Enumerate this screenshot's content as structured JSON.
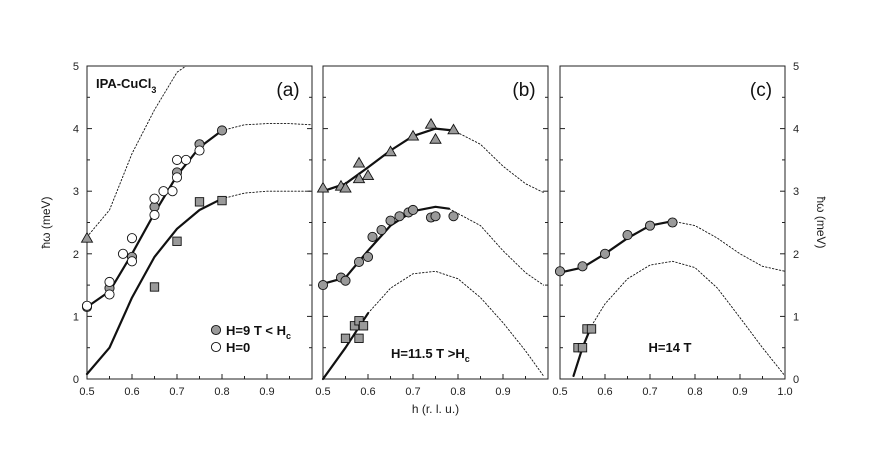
{
  "chart_data": [
    {
      "type": "scatter",
      "panel": "(a)",
      "title": "IPA-CuCl",
      "title_sub": "3",
      "xlim": [
        0.5,
        1.0
      ],
      "ylim": [
        0,
        5
      ],
      "xticks": [
        0.5,
        0.6,
        0.7,
        0.8,
        0.9
      ],
      "xtick_labels": [
        "0.5",
        "0.6",
        "0.7",
        "0.8",
        "0.9"
      ],
      "yticks": [
        0,
        1,
        2,
        3,
        4,
        5
      ],
      "ylabel": "ħω (meV)",
      "legend": [
        {
          "marker": "filled-circle",
          "label": "H=9 T < H",
          "sub": "c"
        },
        {
          "marker": "open-circle",
          "label": "H=0"
        }
      ],
      "series": [
        {
          "name": "H=9T filled circles",
          "marker": "filled-circle",
          "points": [
            [
              0.5,
              1.15
            ],
            [
              0.55,
              1.45
            ],
            [
              0.6,
              1.95
            ],
            [
              0.65,
              2.75
            ],
            [
              0.7,
              3.3
            ],
            [
              0.75,
              3.75
            ],
            [
              0.8,
              3.97
            ]
          ]
        },
        {
          "name": "H=0 open circles",
          "marker": "open-circle",
          "points": [
            [
              0.5,
              1.17
            ],
            [
              0.55,
              1.35
            ],
            [
              0.55,
              1.55
            ],
            [
              0.58,
              2.0
            ],
            [
              0.6,
              1.88
            ],
            [
              0.6,
              2.25
            ],
            [
              0.65,
              2.62
            ],
            [
              0.65,
              2.88
            ],
            [
              0.67,
              3.0
            ],
            [
              0.69,
              3.0
            ],
            [
              0.7,
              3.22
            ],
            [
              0.7,
              3.5
            ],
            [
              0.72,
              3.5
            ],
            [
              0.75,
              3.65
            ]
          ]
        },
        {
          "name": "squares",
          "marker": "square",
          "points": [
            [
              0.65,
              1.47
            ],
            [
              0.7,
              2.2
            ],
            [
              0.75,
              2.83
            ],
            [
              0.8,
              2.85
            ]
          ]
        },
        {
          "name": "triangle",
          "marker": "triangle",
          "points": [
            [
              0.5,
              2.25
            ]
          ]
        }
      ],
      "curves": [
        {
          "style": "solid",
          "points": [
            [
              0.5,
              1.15
            ],
            [
              0.55,
              1.4
            ],
            [
              0.6,
              2.0
            ],
            [
              0.65,
              2.65
            ],
            [
              0.7,
              3.25
            ],
            [
              0.75,
              3.7
            ],
            [
              0.8,
              3.97
            ]
          ]
        },
        {
          "style": "solid",
          "points": [
            [
              0.5,
              0.08
            ],
            [
              0.55,
              0.5
            ],
            [
              0.6,
              1.3
            ],
            [
              0.65,
              1.95
            ],
            [
              0.7,
              2.4
            ],
            [
              0.75,
              2.7
            ],
            [
              0.8,
              2.88
            ]
          ]
        },
        {
          "style": "dotted",
          "points": [
            [
              0.5,
              2.27
            ],
            [
              0.55,
              2.7
            ],
            [
              0.6,
              3.6
            ],
            [
              0.65,
              4.3
            ],
            [
              0.7,
              4.9
            ],
            [
              0.72,
              5.0
            ]
          ]
        },
        {
          "style": "dotted",
          "points": [
            [
              0.8,
              3.97
            ],
            [
              0.85,
              4.06
            ],
            [
              0.9,
              4.08
            ],
            [
              0.95,
              4.08
            ],
            [
              1.0,
              4.06
            ]
          ]
        },
        {
          "style": "dotted",
          "points": [
            [
              0.8,
              2.88
            ],
            [
              0.85,
              2.97
            ],
            [
              0.9,
              3.0
            ],
            [
              0.95,
              3.0
            ],
            [
              1.0,
              3.0
            ]
          ]
        }
      ]
    },
    {
      "type": "scatter",
      "panel": "(b)",
      "xlim": [
        0.5,
        1.0
      ],
      "ylim": [
        0,
        5
      ],
      "xticks": [
        0.5,
        0.6,
        0.7,
        0.8,
        0.9
      ],
      "xtick_labels": [
        "0.5",
        "0.6",
        "0.7",
        "0.8",
        "0.9"
      ],
      "xlabel": "h (r. l. u.)",
      "annotation": {
        "label": "H=11.5 T >H",
        "sub": "c"
      },
      "series": [
        {
          "name": "triangles",
          "marker": "triangle",
          "points": [
            [
              0.5,
              3.05
            ],
            [
              0.54,
              3.08
            ],
            [
              0.55,
              3.05
            ],
            [
              0.58,
              3.2
            ],
            [
              0.58,
              3.45
            ],
            [
              0.6,
              3.25
            ],
            [
              0.65,
              3.63
            ],
            [
              0.7,
              3.88
            ],
            [
              0.74,
              4.07
            ],
            [
              0.75,
              3.83
            ],
            [
              0.79,
              3.98
            ]
          ]
        },
        {
          "name": "circles",
          "marker": "filled-circle",
          "points": [
            [
              0.5,
              1.5
            ],
            [
              0.54,
              1.62
            ],
            [
              0.55,
              1.57
            ],
            [
              0.58,
              1.87
            ],
            [
              0.6,
              1.95
            ],
            [
              0.61,
              2.27
            ],
            [
              0.63,
              2.38
            ],
            [
              0.65,
              2.53
            ],
            [
              0.67,
              2.6
            ],
            [
              0.69,
              2.66
            ],
            [
              0.7,
              2.7
            ],
            [
              0.74,
              2.58
            ],
            [
              0.75,
              2.6
            ],
            [
              0.79,
              2.6
            ]
          ]
        },
        {
          "name": "squares",
          "marker": "square",
          "points": [
            [
              0.55,
              0.65
            ],
            [
              0.57,
              0.85
            ],
            [
              0.58,
              0.93
            ],
            [
              0.58,
              0.65
            ],
            [
              0.59,
              0.85
            ]
          ]
        }
      ],
      "curves": [
        {
          "style": "solid",
          "points": [
            [
              0.5,
              3.0
            ],
            [
              0.55,
              3.12
            ],
            [
              0.6,
              3.38
            ],
            [
              0.65,
              3.65
            ],
            [
              0.7,
              3.88
            ],
            [
              0.75,
              4.0
            ],
            [
              0.79,
              3.97
            ]
          ]
        },
        {
          "style": "solid",
          "points": [
            [
              0.5,
              1.52
            ],
            [
              0.55,
              1.62
            ],
            [
              0.6,
              2.05
            ],
            [
              0.65,
              2.45
            ],
            [
              0.7,
              2.68
            ],
            [
              0.75,
              2.75
            ],
            [
              0.78,
              2.72
            ]
          ]
        },
        {
          "style": "solid",
          "points": [
            [
              0.5,
              0.0
            ],
            [
              0.55,
              0.5
            ],
            [
              0.6,
              1.05
            ]
          ]
        },
        {
          "style": "dotted",
          "points": [
            [
              0.6,
              1.05
            ],
            [
              0.65,
              1.45
            ],
            [
              0.7,
              1.68
            ],
            [
              0.75,
              1.72
            ],
            [
              0.8,
              1.6
            ],
            [
              0.85,
              1.3
            ],
            [
              0.9,
              0.9
            ],
            [
              0.95,
              0.45
            ],
            [
              0.99,
              0.05
            ]
          ]
        },
        {
          "style": "dotted",
          "points": [
            [
              0.79,
              3.97
            ],
            [
              0.85,
              3.75
            ],
            [
              0.9,
              3.4
            ],
            [
              0.95,
              3.12
            ],
            [
              0.99,
              2.98
            ]
          ]
        },
        {
          "style": "dotted",
          "points": [
            [
              0.78,
              2.72
            ],
            [
              0.85,
              2.45
            ],
            [
              0.9,
              2.05
            ],
            [
              0.95,
              1.7
            ],
            [
              0.99,
              1.5
            ]
          ]
        }
      ]
    },
    {
      "type": "scatter",
      "panel": "(c)",
      "xlim": [
        0.5,
        1.0
      ],
      "ylim": [
        0,
        5
      ],
      "xticks": [
        0.5,
        0.6,
        0.7,
        0.8,
        0.9,
        1.0
      ],
      "xtick_labels": [
        "0.5",
        "0.6",
        "0.7",
        "0.8",
        "0.9",
        "1.0"
      ],
      "yticks": [
        0,
        1,
        2,
        3,
        4,
        5
      ],
      "ylabel": "ħω (meV)",
      "annotation": {
        "label": "H=14 T"
      },
      "series": [
        {
          "name": "circles",
          "marker": "filled-circle",
          "points": [
            [
              0.5,
              1.72
            ],
            [
              0.55,
              1.8
            ],
            [
              0.6,
              2.0
            ],
            [
              0.65,
              2.3
            ],
            [
              0.7,
              2.45
            ],
            [
              0.75,
              2.5
            ]
          ]
        },
        {
          "name": "squares",
          "marker": "square",
          "points": [
            [
              0.54,
              0.5
            ],
            [
              0.55,
              0.5
            ],
            [
              0.56,
              0.8
            ],
            [
              0.57,
              0.8
            ]
          ]
        }
      ],
      "curves": [
        {
          "style": "solid",
          "points": [
            [
              0.5,
              1.7
            ],
            [
              0.55,
              1.78
            ],
            [
              0.6,
              2.0
            ],
            [
              0.65,
              2.25
            ],
            [
              0.7,
              2.45
            ],
            [
              0.75,
              2.52
            ]
          ]
        },
        {
          "style": "solid",
          "points": [
            [
              0.53,
              0.05
            ],
            [
              0.55,
              0.5
            ],
            [
              0.57,
              0.85
            ]
          ]
        },
        {
          "style": "dotted",
          "points": [
            [
              0.75,
              2.52
            ],
            [
              0.8,
              2.45
            ],
            [
              0.85,
              2.25
            ],
            [
              0.9,
              2.0
            ],
            [
              0.95,
              1.8
            ],
            [
              1.0,
              1.72
            ]
          ]
        },
        {
          "style": "dotted",
          "points": [
            [
              0.57,
              0.85
            ],
            [
              0.6,
              1.2
            ],
            [
              0.65,
              1.6
            ],
            [
              0.7,
              1.82
            ],
            [
              0.75,
              1.88
            ],
            [
              0.8,
              1.78
            ],
            [
              0.85,
              1.45
            ],
            [
              0.9,
              0.98
            ],
            [
              0.95,
              0.5
            ],
            [
              1.0,
              0.05
            ]
          ]
        }
      ]
    }
  ]
}
